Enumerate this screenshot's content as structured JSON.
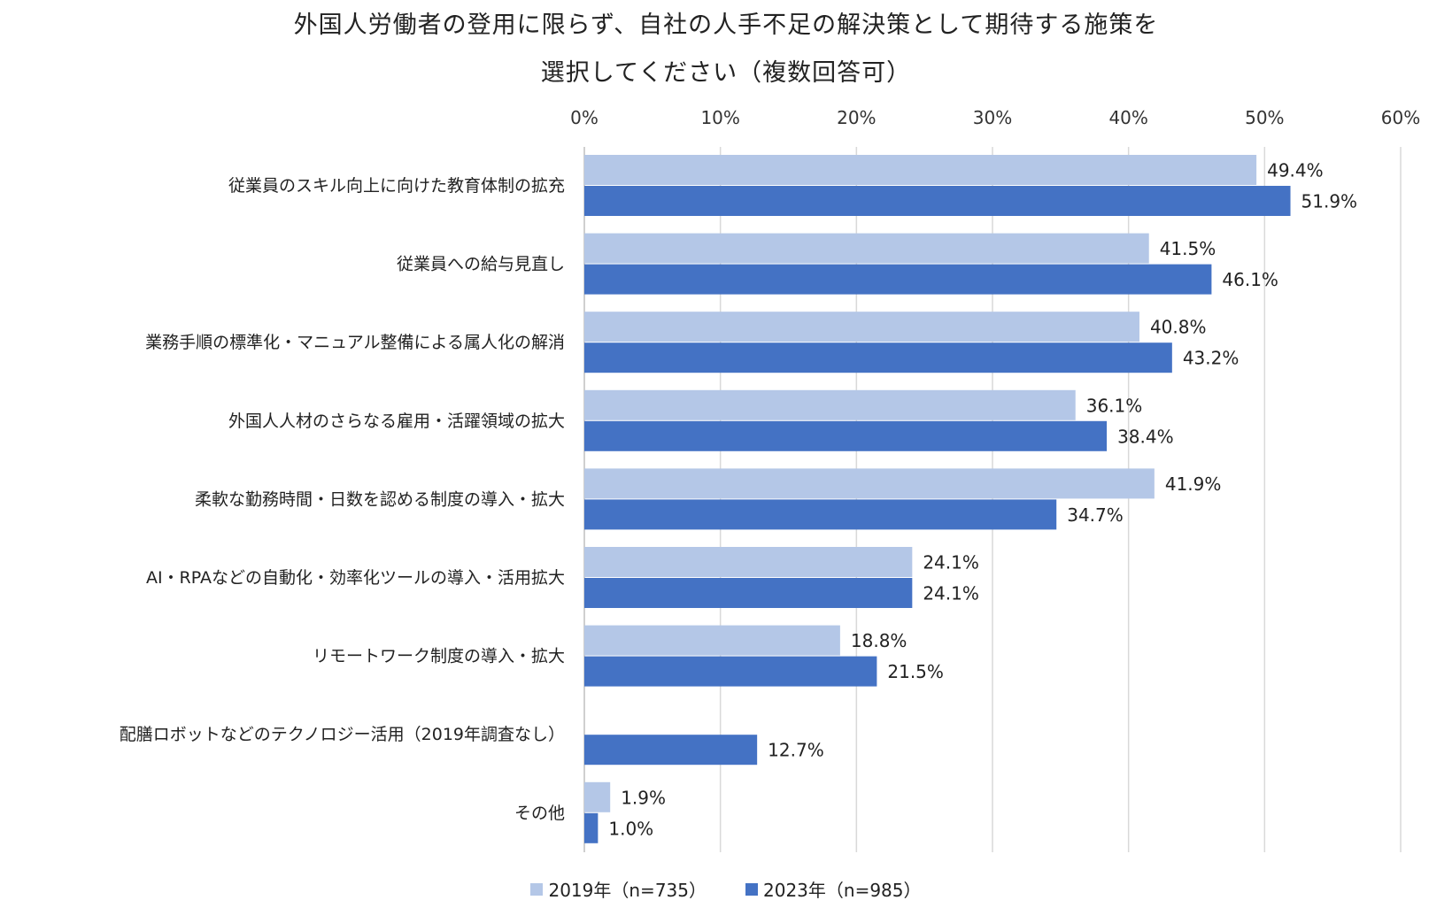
{
  "title_line1": "外国人労働者の登用に限らず、自社の人手不足の解決策として期待する施策を",
  "title_line2": "選択してください（複数回答可）",
  "chart_data": {
    "type": "bar",
    "orientation": "horizontal",
    "categories": [
      "従業員のスキル向上に向けた教育体制の拡充",
      "従業員への給与見直し",
      "業務手順の標準化・マニュアル整備による属人化の解消",
      "外国人人材のさらなる雇用・活躍領域の拡大",
      "柔軟な勤務時間・日数を認める制度の導入・拡大",
      "AI・RPAなどの自動化・効率化ツールの導入・活用拡大",
      "リモートワーク制度の導入・拡大",
      "配膳ロボットなどのテクノロジー活用（2019年調査なし）",
      "その他"
    ],
    "series": [
      {
        "name": "2019年（n=735）",
        "color": "#b4c7e7",
        "values": [
          49.4,
          41.5,
          40.8,
          36.1,
          41.9,
          24.1,
          18.8,
          null,
          1.9
        ],
        "labels": [
          "49.4%",
          "41.5%",
          "40.8%",
          "36.1%",
          "41.9%",
          "24.1%",
          "18.8%",
          "",
          "1.9%"
        ]
      },
      {
        "name": "2023年（n=985）",
        "color": "#4472c4",
        "values": [
          51.9,
          46.1,
          43.2,
          38.4,
          34.7,
          24.1,
          21.5,
          12.7,
          1.0
        ],
        "labels": [
          "51.9%",
          "46.1%",
          "43.2%",
          "38.4%",
          "34.7%",
          "24.1%",
          "21.5%",
          "12.7%",
          "1.0%"
        ]
      }
    ],
    "xlim": [
      0,
      60
    ],
    "xticks": [
      "0%",
      "10%",
      "20%",
      "30%",
      "40%",
      "50%",
      "60%"
    ],
    "axis_position": "top",
    "grid": true,
    "legend_position": "bottom"
  }
}
